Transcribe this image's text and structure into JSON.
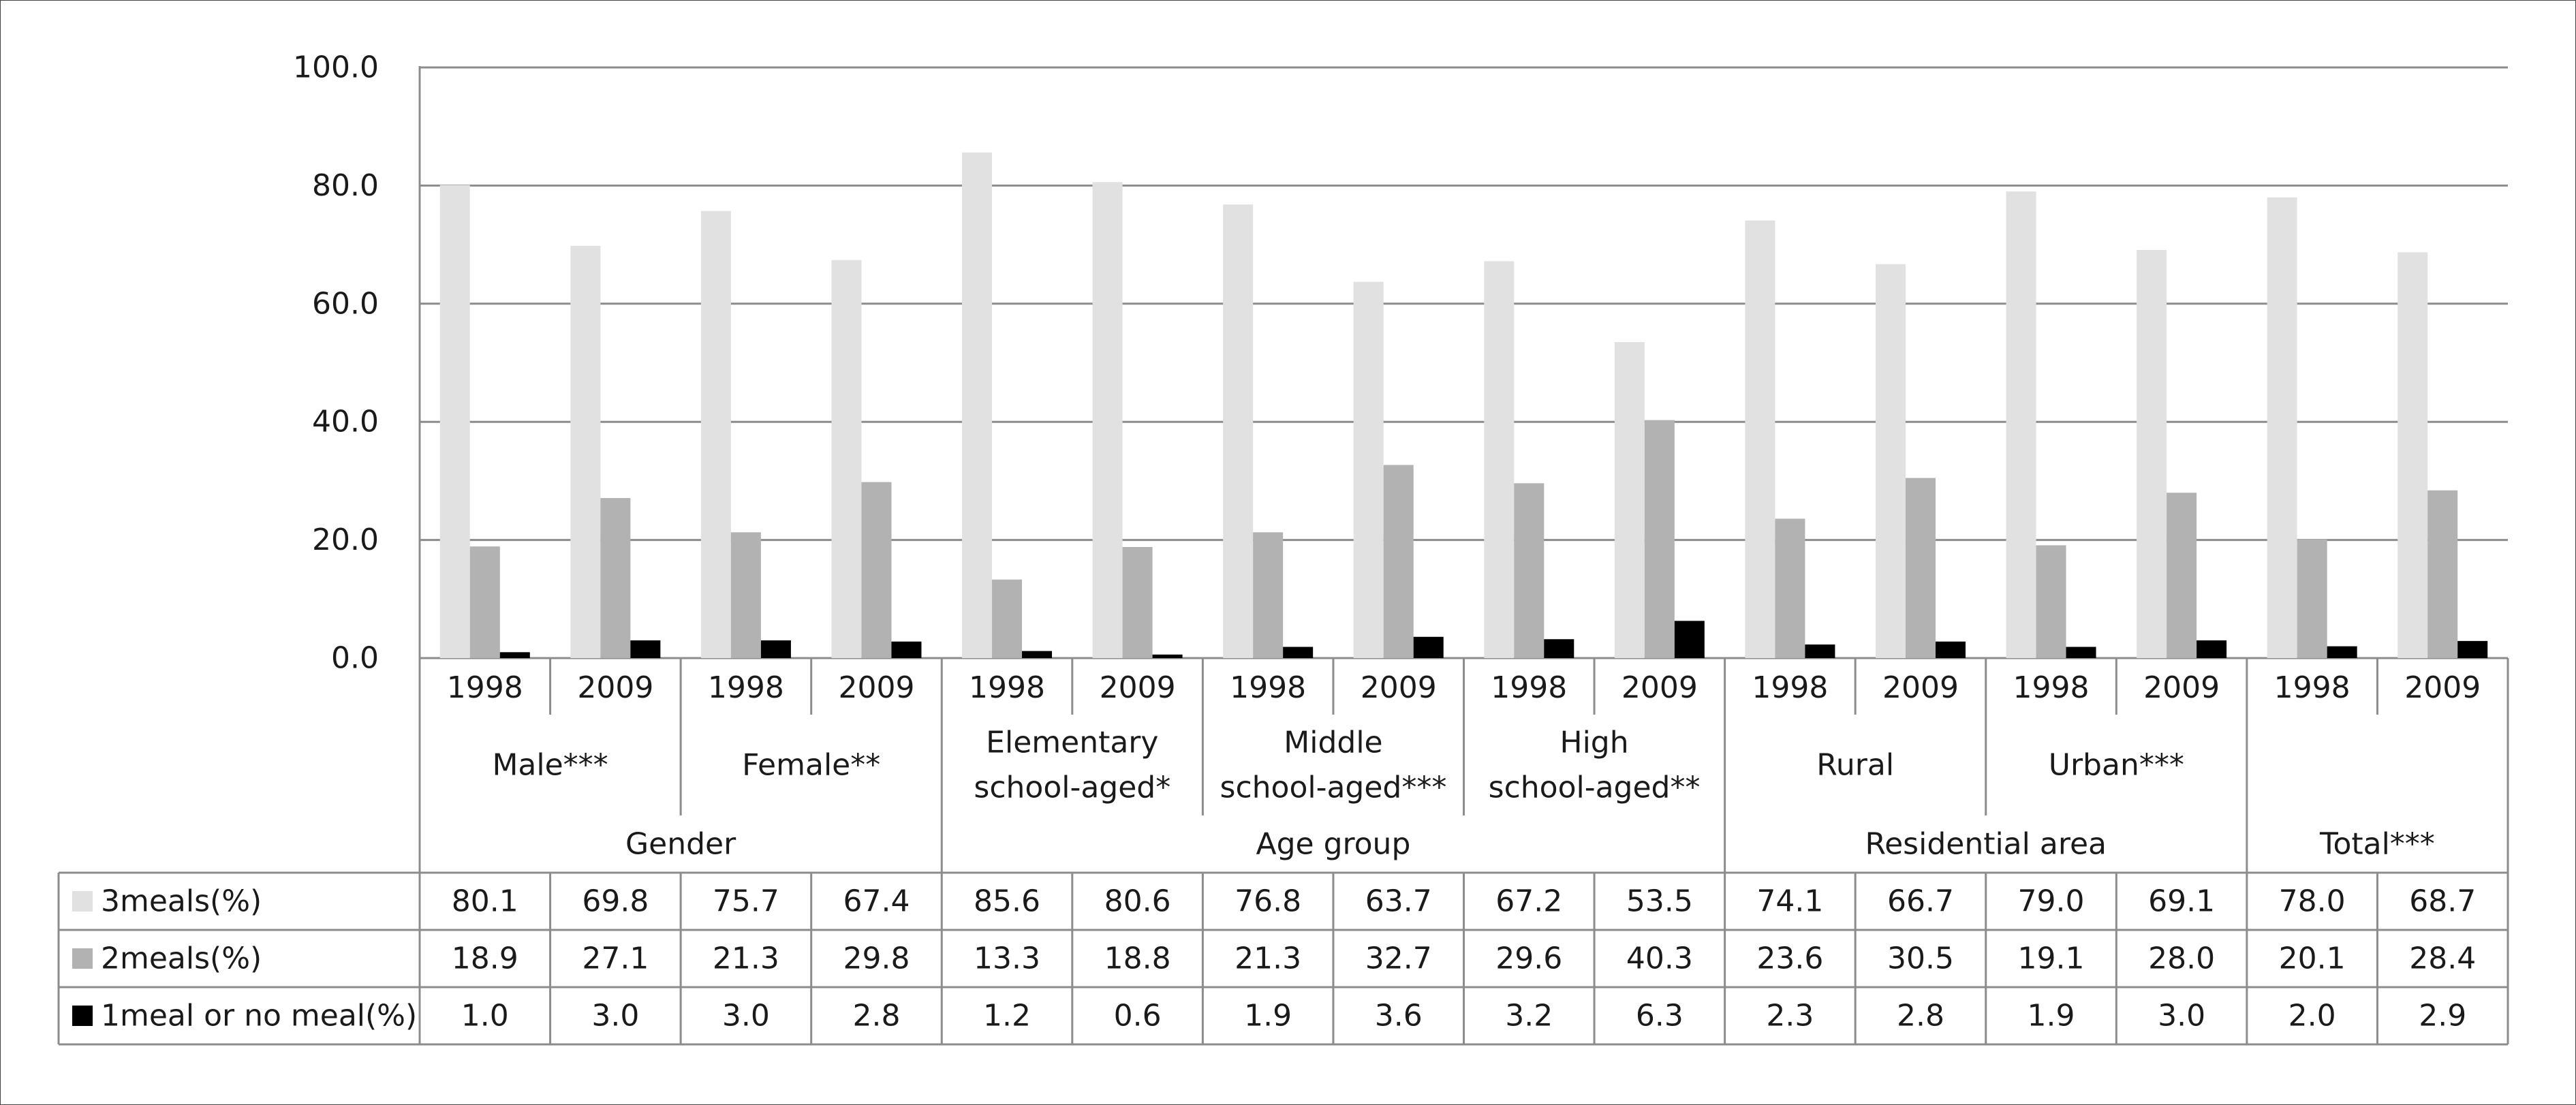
{
  "chart_data": {
    "type": "bar",
    "ylim": [
      0,
      100
    ],
    "yticks": [
      "0.0",
      "20.0",
      "40.0",
      "60.0",
      "80.0",
      "100.0"
    ],
    "grid": true,
    "legend_placement": "left of data table",
    "categories": [
      "1998",
      "2009",
      "1998",
      "2009",
      "1998",
      "2009",
      "1998",
      "2009",
      "1998",
      "2009",
      "1998",
      "2009",
      "1998",
      "2009",
      "1998",
      "2009"
    ],
    "subgroups": [
      {
        "lines": [
          "Male***"
        ],
        "span": 2
      },
      {
        "lines": [
          "Female**"
        ],
        "span": 2
      },
      {
        "lines": [
          "Elementary",
          "school-aged*"
        ],
        "span": 2
      },
      {
        "lines": [
          "Middle",
          "school-aged***"
        ],
        "span": 2
      },
      {
        "lines": [
          "High",
          "school-aged**"
        ],
        "span": 2
      },
      {
        "lines": [
          "Rural"
        ],
        "span": 2
      },
      {
        "lines": [
          "Urban***"
        ],
        "span": 2
      },
      {
        "lines": [],
        "span": 2
      }
    ],
    "groups": [
      {
        "label": "Gender",
        "span": 4
      },
      {
        "label": "Age group",
        "span": 6
      },
      {
        "label": "Residential  area",
        "span": 4
      },
      {
        "label": "Total***",
        "span": 2
      }
    ],
    "series": [
      {
        "name": "3meals(%)",
        "color": "#e1e1e1",
        "values": [
          80.1,
          69.8,
          75.7,
          67.4,
          85.6,
          80.6,
          76.8,
          63.7,
          67.2,
          53.5,
          74.1,
          66.7,
          79.0,
          69.1,
          78.0,
          68.7
        ],
        "labels": [
          "80.1",
          "69.8",
          "75.7",
          "67.4",
          "85.6",
          "80.6",
          "76.8",
          "63.7",
          "67.2",
          "53.5",
          "74.1",
          "66.7",
          "79.0",
          "69.1",
          "78.0",
          "68.7"
        ]
      },
      {
        "name": "2meals(%)",
        "color": "#b2b2b2",
        "values": [
          18.9,
          27.1,
          21.3,
          29.8,
          13.3,
          18.8,
          21.3,
          32.7,
          29.6,
          40.3,
          23.6,
          30.5,
          19.1,
          28.0,
          20.1,
          28.4
        ],
        "labels": [
          "18.9",
          "27.1",
          "21.3",
          "29.8",
          "13.3",
          "18.8",
          "21.3",
          "32.7",
          "29.6",
          "40.3",
          "23.6",
          "30.5",
          "19.1",
          "28.0",
          "20.1",
          "28.4"
        ]
      },
      {
        "name": "1meal or no meal(%)",
        "color": "#000000",
        "values": [
          1.0,
          3.0,
          3.0,
          2.8,
          1.2,
          0.6,
          1.9,
          3.6,
          3.2,
          6.3,
          2.3,
          2.8,
          1.9,
          3.0,
          2.0,
          2.9
        ],
        "labels": [
          "1.0",
          "3.0",
          "3.0",
          "2.8",
          "1.2",
          "0.6",
          "1.9",
          "3.6",
          "3.2",
          "6.3",
          "2.3",
          "2.8",
          "1.9",
          "3.0",
          "2.0",
          "2.9"
        ]
      }
    ]
  }
}
